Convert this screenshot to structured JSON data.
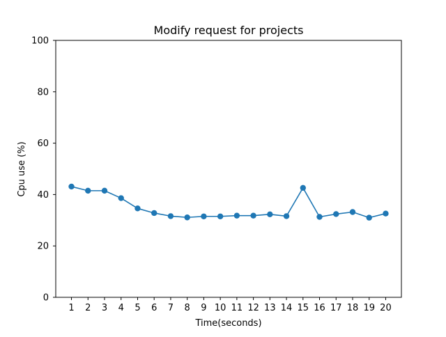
{
  "chart_data": {
    "type": "line",
    "title": "Modify request for projects",
    "xlabel": "Time(seconds)",
    "ylabel": "Cpu use (%)",
    "x": [
      1,
      2,
      3,
      4,
      5,
      6,
      7,
      8,
      9,
      10,
      11,
      12,
      13,
      14,
      15,
      16,
      17,
      18,
      19,
      20
    ],
    "series": [
      {
        "values": [
          43.1,
          41.5,
          41.5,
          38.6,
          34.6,
          32.8,
          31.6,
          31.1,
          31.5,
          31.5,
          31.8,
          31.8,
          32.3,
          31.6,
          42.6,
          31.3,
          32.4,
          33.2,
          31.0,
          32.6
        ],
        "color": "#1f77b4",
        "marker": "circle"
      }
    ],
    "xticks": [
      "1",
      "2",
      "3",
      "4",
      "5",
      "6",
      "7",
      "8",
      "9",
      "10",
      "11",
      "12",
      "13",
      "14",
      "15",
      "16",
      "17",
      "18",
      "19",
      "20"
    ],
    "yticks": [
      "0",
      "20",
      "40",
      "60",
      "80",
      "100"
    ],
    "xlim": [
      0.05,
      20.95
    ],
    "ylim": [
      0,
      100
    ],
    "grid": false,
    "legend": false
  }
}
